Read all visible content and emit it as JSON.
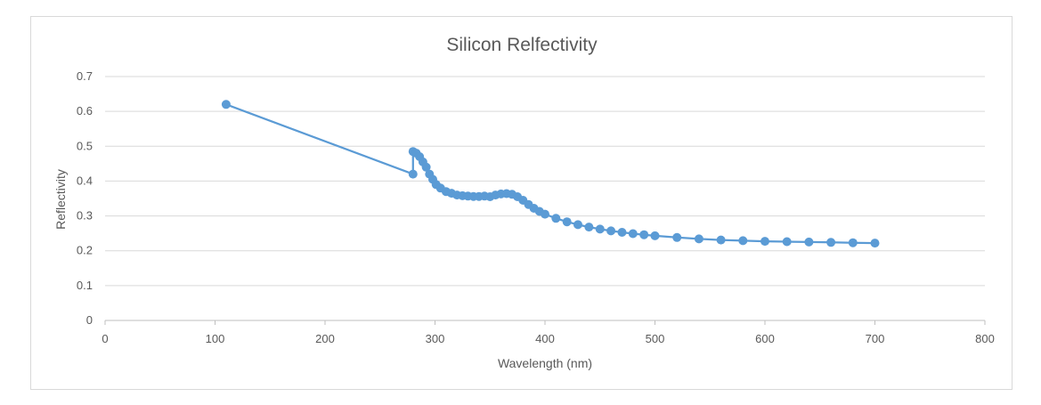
{
  "chart_data": {
    "type": "scatter",
    "title": "Silicon Relfectivity",
    "xlabel": "Wavelength (nm)",
    "ylabel": "Reflectivity",
    "xlim": [
      0,
      800
    ],
    "ylim": [
      0,
      0.7
    ],
    "xticks": [
      0,
      100,
      200,
      300,
      400,
      500,
      600,
      700,
      800
    ],
    "yticks": [
      0,
      0.1,
      0.2,
      0.3,
      0.4,
      0.5,
      0.6,
      0.7
    ],
    "grid": true,
    "legend": "none",
    "color": "#5b9bd5",
    "series": [
      {
        "x": [
          110,
          280,
          280,
          283,
          286,
          289,
          292,
          295,
          298,
          301,
          305,
          310,
          315,
          320,
          325,
          330,
          335,
          340,
          345,
          350,
          355,
          360,
          365,
          370,
          375,
          380,
          385,
          390,
          395,
          400,
          410,
          420,
          430,
          440,
          450,
          460,
          470,
          480,
          490,
          500,
          520,
          540,
          560,
          580,
          600,
          620,
          640,
          660,
          680,
          700
        ],
        "y": [
          0.62,
          0.42,
          0.485,
          0.48,
          0.47,
          0.455,
          0.44,
          0.42,
          0.405,
          0.39,
          0.38,
          0.37,
          0.365,
          0.36,
          0.358,
          0.357,
          0.356,
          0.356,
          0.357,
          0.355,
          0.36,
          0.363,
          0.364,
          0.362,
          0.355,
          0.345,
          0.333,
          0.322,
          0.313,
          0.305,
          0.293,
          0.283,
          0.275,
          0.268,
          0.262,
          0.257,
          0.253,
          0.249,
          0.246,
          0.243,
          0.238,
          0.234,
          0.231,
          0.229,
          0.227,
          0.226,
          0.225,
          0.224,
          0.223,
          0.222
        ]
      }
    ]
  }
}
